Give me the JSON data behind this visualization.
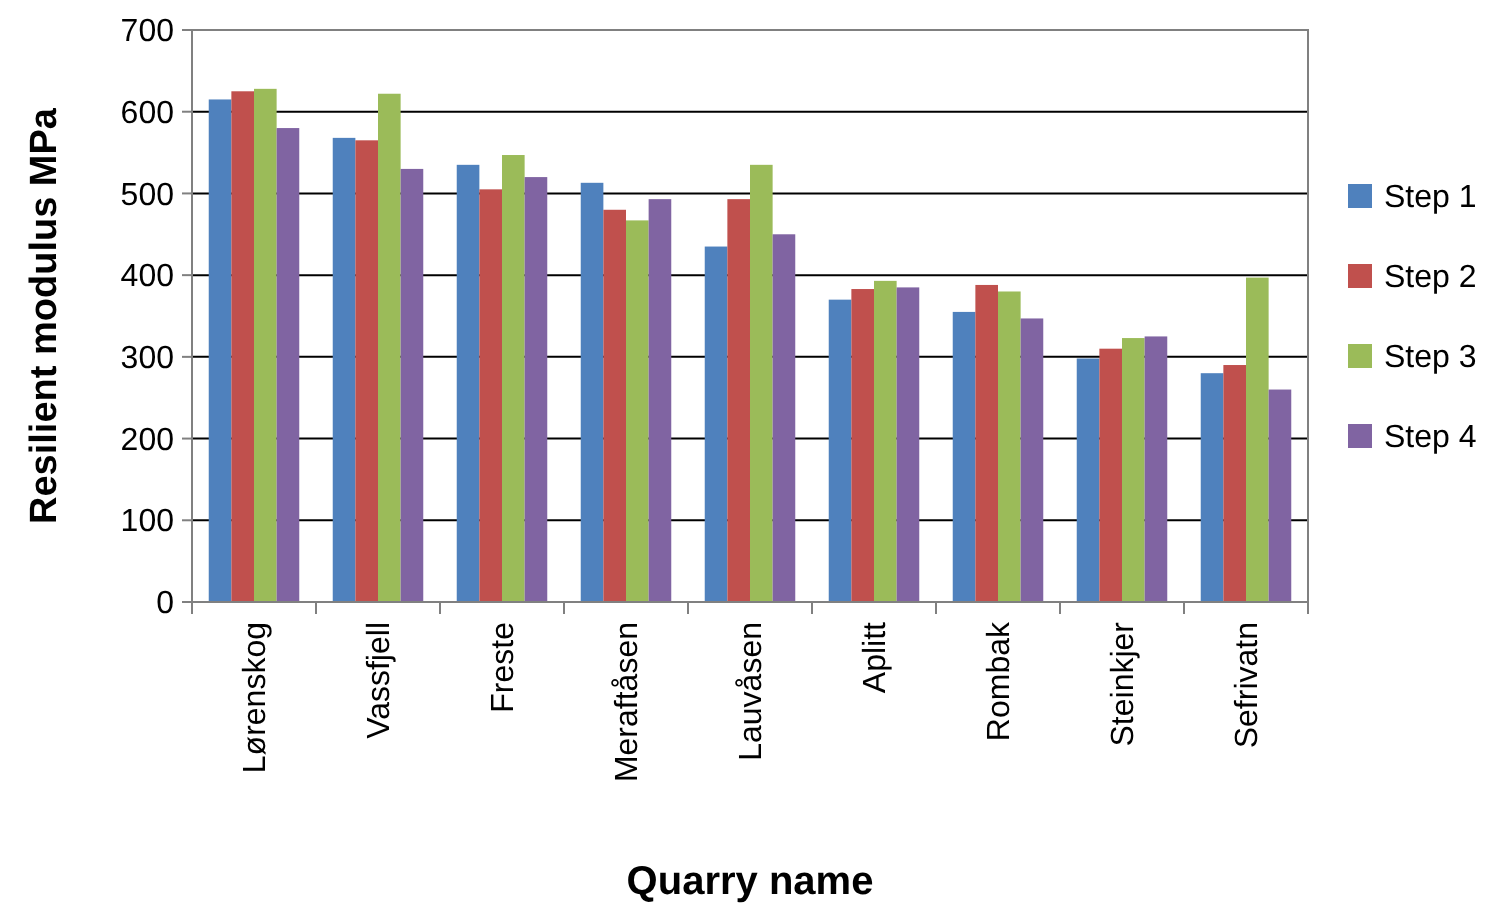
{
  "chart_data": {
    "type": "bar",
    "xlabel": "Quarry name",
    "ylabel": "Resilient modulus  MPa",
    "categories": [
      "Lørenskog",
      "Vassfjell",
      "Freste",
      "Meraftåsen",
      "Lauvåsen",
      "Aplitt",
      "Rombak",
      "Steinkjer",
      "Sefrivatn"
    ],
    "series": [
      {
        "name": "Step 1",
        "color": "#4f81bd",
        "values": [
          615,
          568,
          535,
          513,
          435,
          370,
          355,
          298,
          280
        ]
      },
      {
        "name": "Step 2",
        "color": "#c0504d",
        "values": [
          625,
          565,
          505,
          480,
          493,
          383,
          388,
          310,
          290
        ]
      },
      {
        "name": "Step 3",
        "color": "#9bbb59",
        "values": [
          628,
          622,
          547,
          467,
          535,
          393,
          380,
          323,
          397
        ]
      },
      {
        "name": "Step 4",
        "color": "#8064a2",
        "values": [
          580,
          530,
          520,
          493,
          450,
          385,
          347,
          325,
          260
        ]
      }
    ],
    "ylim": [
      0,
      700
    ],
    "yticks": [
      0,
      100,
      200,
      300,
      400,
      500,
      600,
      700
    ],
    "grid": "y",
    "legend": "right"
  }
}
